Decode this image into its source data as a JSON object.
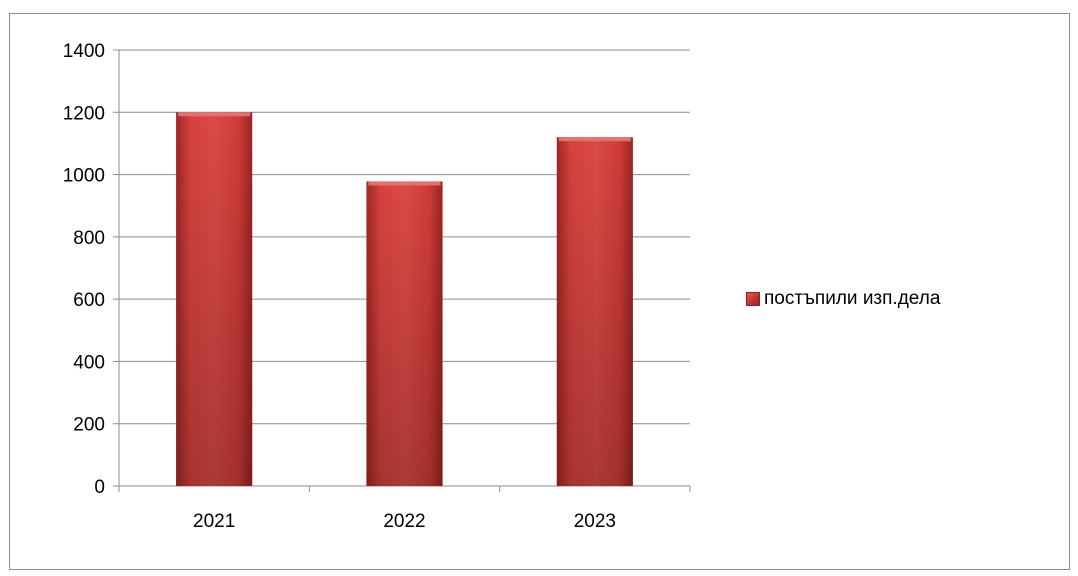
{
  "chart_data": {
    "type": "bar",
    "categories": [
      "2021",
      "2022",
      "2023"
    ],
    "series": [
      {
        "name": "постъпили изп.дела",
        "values": [
          1200,
          978,
          1120
        ],
        "color": "#d23f3c"
      }
    ],
    "ylim": [
      0,
      1400
    ],
    "yticks": [
      "0",
      "200",
      "400",
      "600",
      "800",
      "1000",
      "1200",
      "1400"
    ],
    "grid": true,
    "legend_position": "right",
    "title": "",
    "xlabel": "",
    "ylabel": ""
  }
}
